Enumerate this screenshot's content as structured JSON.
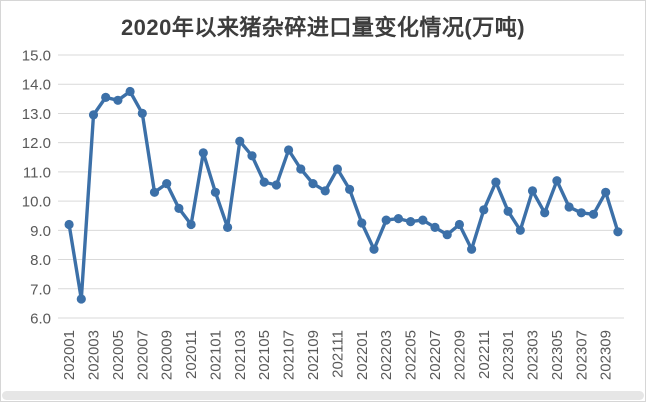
{
  "chart_data": {
    "type": "line",
    "title": "2020年以来猪杂碎进口量变化情况(万吨)",
    "categories": [
      "202001",
      "202002",
      "202003",
      "202004",
      "202005",
      "202006",
      "202007",
      "202008",
      "202009",
      "202010",
      "202011",
      "202012",
      "202101",
      "202102",
      "202103",
      "202104",
      "202105",
      "202106",
      "202107",
      "202108",
      "202109",
      "202110",
      "202111",
      "202112",
      "202201",
      "202202",
      "202203",
      "202204",
      "202205",
      "202206",
      "202207",
      "202208",
      "202209",
      "202210",
      "202211",
      "202212",
      "202301",
      "202302",
      "202303",
      "202304",
      "202305",
      "202306",
      "202307",
      "202308",
      "202309",
      "202310"
    ],
    "values": [
      9.2,
      6.65,
      12.95,
      13.55,
      13.45,
      13.75,
      13.0,
      10.3,
      10.6,
      9.75,
      9.2,
      11.65,
      10.3,
      9.1,
      12.05,
      11.55,
      10.65,
      10.55,
      11.75,
      11.1,
      10.6,
      10.35,
      11.1,
      10.4,
      9.25,
      8.35,
      9.35,
      9.4,
      9.3,
      9.35,
      9.1,
      8.85,
      9.2,
      8.35,
      9.7,
      10.65,
      9.65,
      9.0,
      10.35,
      9.6,
      10.7,
      9.8,
      9.6,
      9.55,
      10.3,
      8.95
    ],
    "xlabel": "",
    "ylabel": "",
    "ylim": [
      6.0,
      15.0
    ],
    "ytick_step": 1.0,
    "ytick_labels": [
      "15.0",
      "14.0",
      "13.0",
      "12.0",
      "11.0",
      "10.0",
      "9.0",
      "8.0",
      "7.0",
      "6.0"
    ],
    "xtick_every": 2,
    "grid": true,
    "legend": false,
    "line_color": "#3c70a8",
    "grid_color": "#d9d9d9",
    "tick_color": "#595959"
  }
}
